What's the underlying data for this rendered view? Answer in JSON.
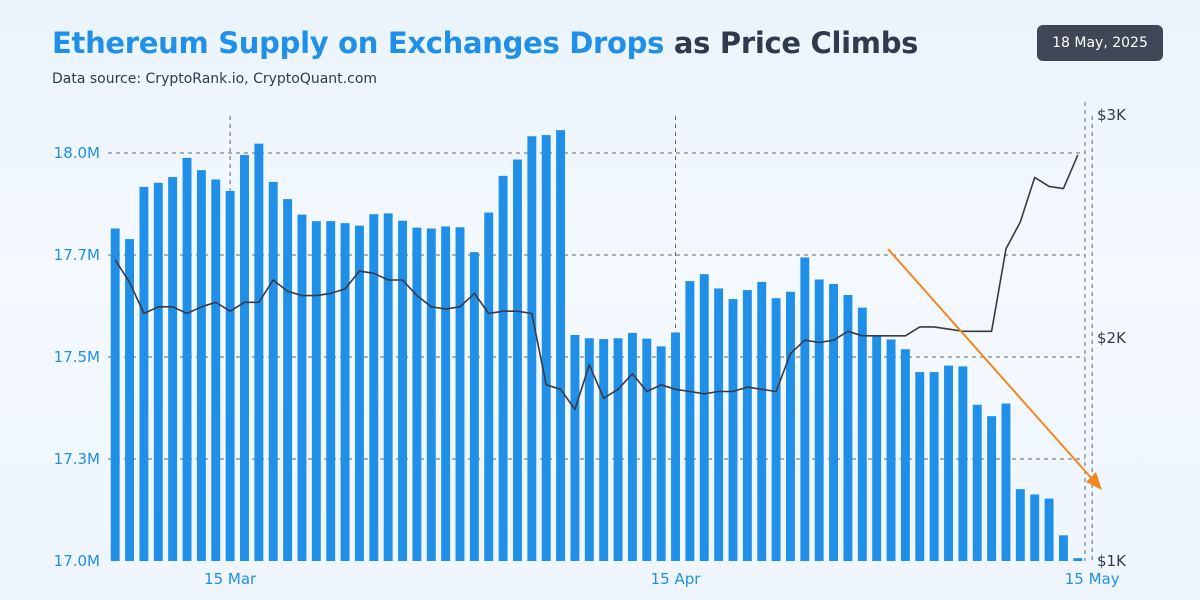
{
  "header": {
    "title_highlight": "Ethereum Supply on Exchanges Drops",
    "title_rest": " as Price Climbs",
    "subtitle": "Data source: CryptoRank.io, CryptoQuant.com",
    "date": "18 May, 2025"
  },
  "colors": {
    "bars": "#1f8fe8",
    "price_line": "#3a3a44",
    "trend_arrow": "#f2871f",
    "grid": "#666666"
  },
  "chart_data": {
    "type": "bar",
    "title": "Ethereum Supply on Exchanges Drops as Price Climbs",
    "x_ticks": [
      "15 Mar",
      "15 Apr",
      "15 May"
    ],
    "x_tick_index": [
      8,
      39,
      68
    ],
    "y_left": {
      "ticks": [
        "18.0M",
        "17.7M",
        "17.5M",
        "17.3M",
        "17.0M"
      ],
      "tick_values": [
        18.0,
        17.75,
        17.5,
        17.25,
        17.0
      ],
      "range": [
        17.0,
        18.0
      ]
    },
    "y_right": {
      "ticks": [
        "$3K",
        "$2K",
        "$1K"
      ],
      "tick_values": [
        3000,
        2000,
        1000
      ],
      "range": [
        1000,
        3000
      ]
    },
    "grid": "dashed horizontal",
    "series": [
      {
        "kind": "bars",
        "axis": "left",
        "values": [
          17.815,
          17.789,
          17.917,
          17.927,
          17.941,
          17.988,
          17.958,
          17.935,
          17.907,
          17.995,
          18.023,
          17.929,
          17.887,
          17.849,
          17.833,
          17.833,
          17.828,
          17.822,
          17.85,
          17.852,
          17.834,
          17.817,
          17.815,
          17.82,
          17.818,
          17.757,
          17.854,
          17.944,
          17.984,
          18.041,
          18.044,
          18.056,
          17.554,
          17.546,
          17.544,
          17.546,
          17.559,
          17.545,
          17.526,
          17.56,
          17.686,
          17.703,
          17.668,
          17.642,
          17.664,
          17.684,
          17.644,
          17.66,
          17.744,
          17.69,
          17.679,
          17.652,
          17.621,
          17.554,
          17.543,
          17.519,
          17.463,
          17.463,
          17.479,
          17.477,
          17.383,
          17.355,
          17.386,
          17.176,
          17.163,
          17.153,
          17.063,
          17.007
        ]
      },
      {
        "kind": "line",
        "axis": "right",
        "values": [
          2350,
          2250,
          2110,
          2140,
          2140,
          2110,
          2140,
          2160,
          2120,
          2160,
          2160,
          2260,
          2210,
          2190,
          2190,
          2200,
          2220,
          2300,
          2290,
          2260,
          2260,
          2190,
          2140,
          2130,
          2140,
          2200,
          2110,
          2120,
          2120,
          2110,
          1790,
          1770,
          1680,
          1880,
          1730,
          1770,
          1840,
          1760,
          1790,
          1770,
          1760,
          1750,
          1760,
          1760,
          1780,
          1770,
          1760,
          1930,
          1990,
          1980,
          1990,
          2030,
          2010,
          2010,
          2010,
          2010,
          2050,
          2050,
          2040,
          2030,
          2030,
          2030,
          2400,
          2520,
          2720,
          2680,
          2670,
          2820
        ]
      }
    ],
    "annotation": "downward trend arrow"
  }
}
